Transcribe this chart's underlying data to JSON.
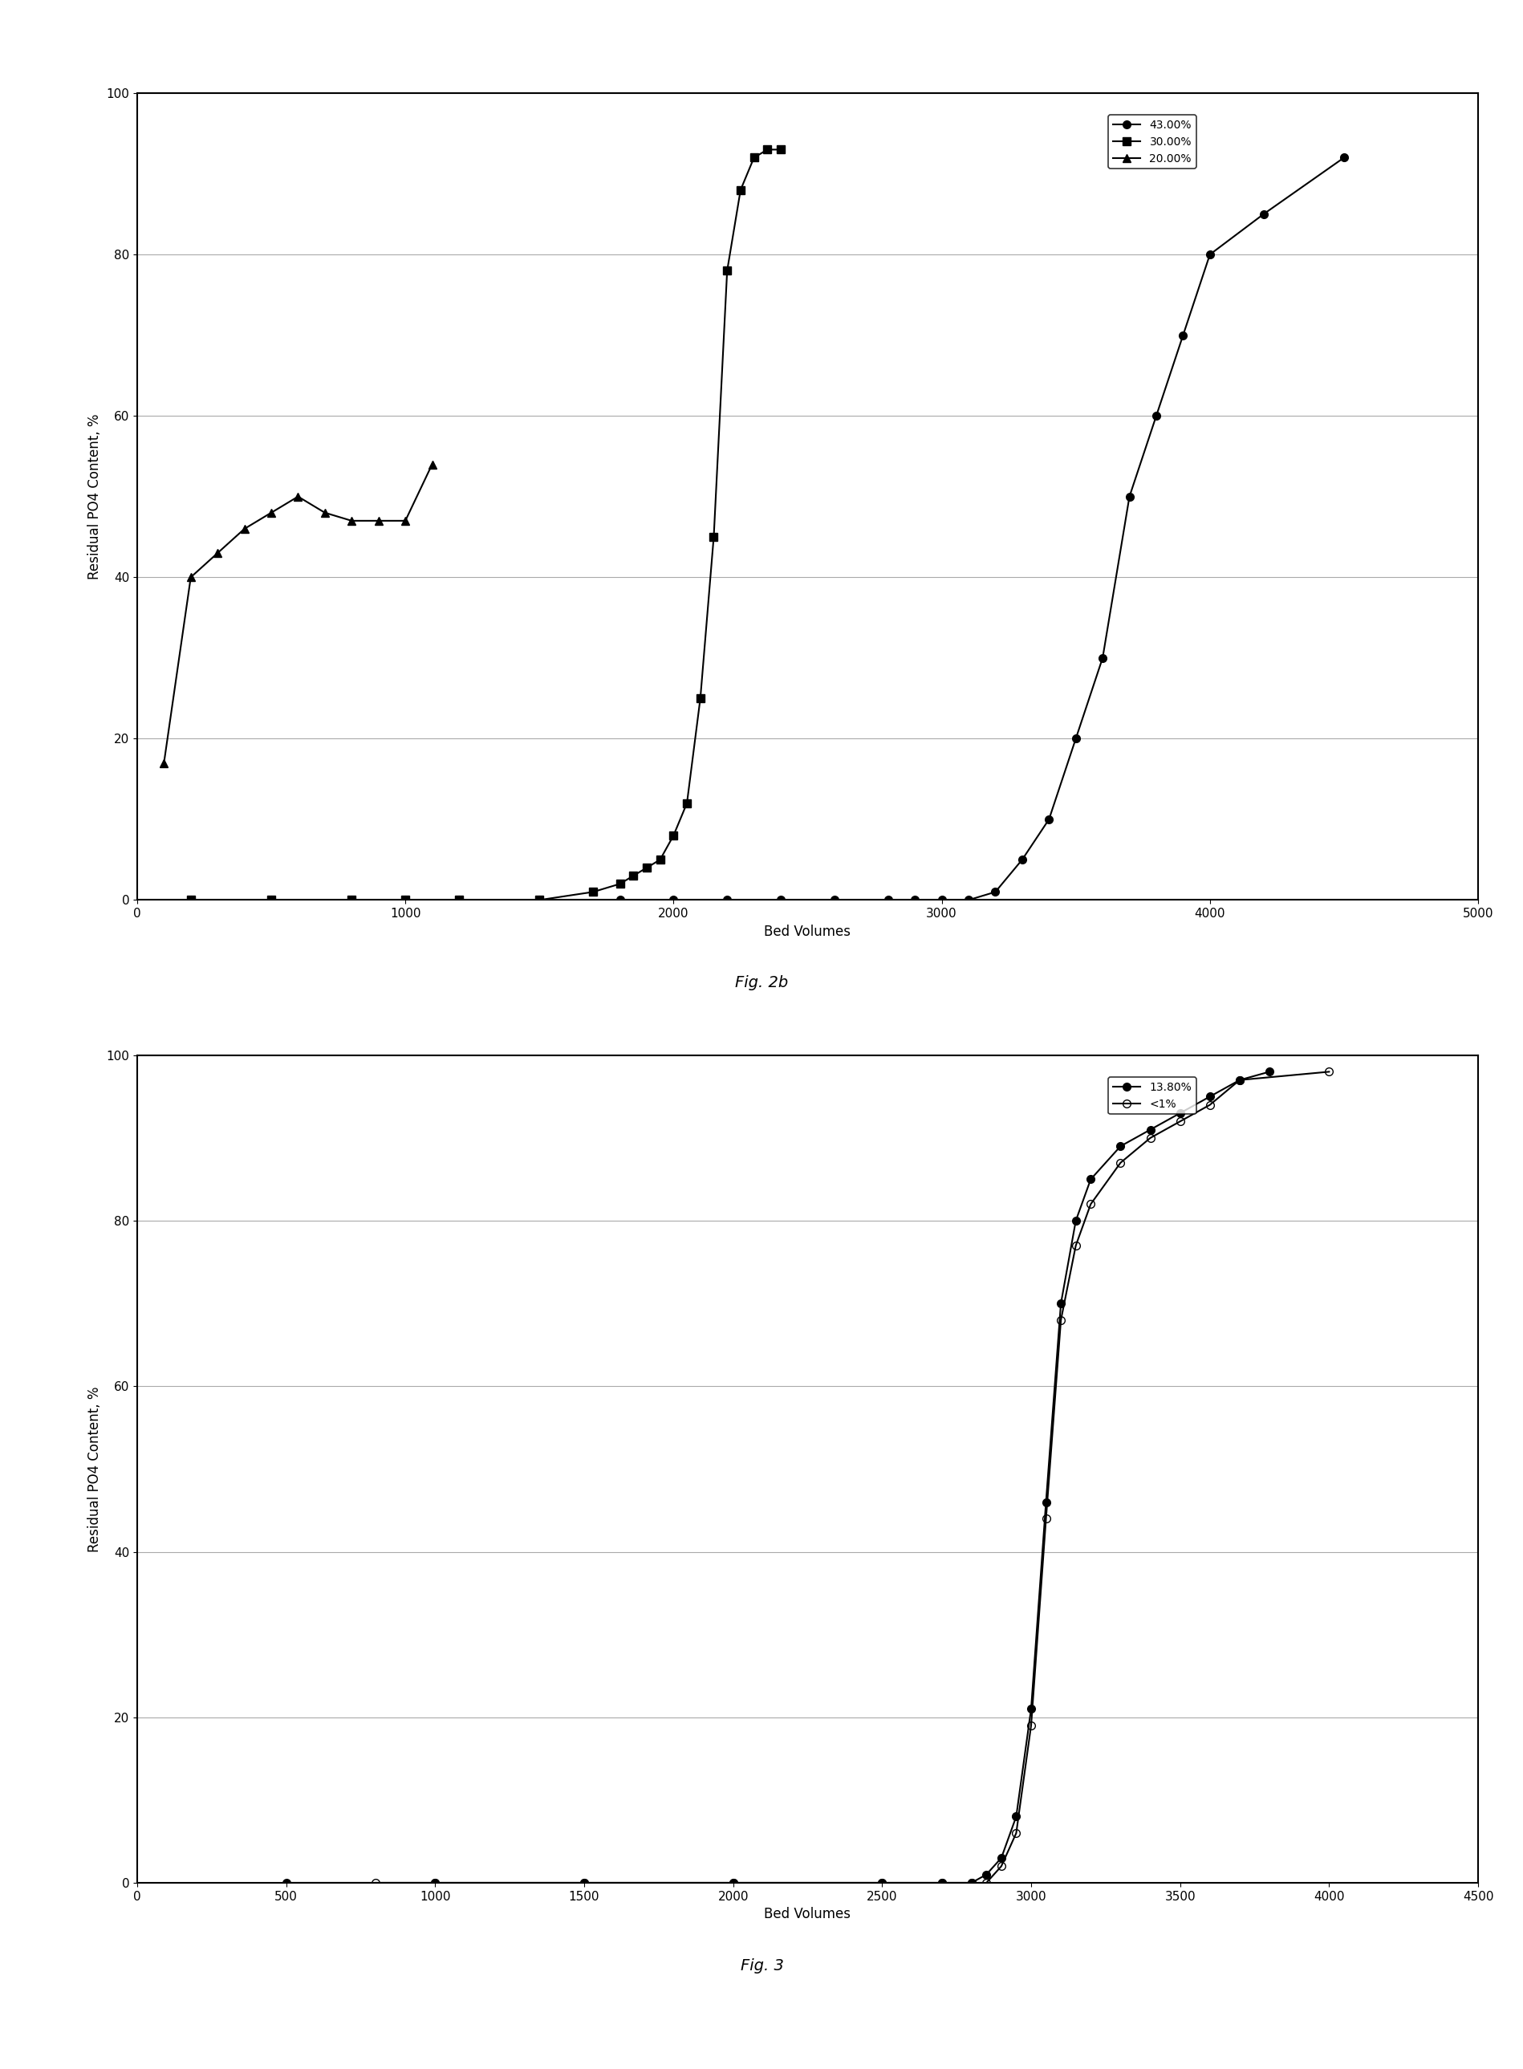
{
  "fig2b": {
    "xlabel": "Bed Volumes",
    "ylabel": "Residual PO4 Content, %",
    "xlim": [
      0,
      5000
    ],
    "ylim": [
      0,
      100
    ],
    "xticks": [
      0,
      1000,
      2000,
      3000,
      4000,
      5000
    ],
    "yticks": [
      0,
      20,
      40,
      60,
      80,
      100
    ],
    "series": [
      {
        "label": "43.00%",
        "marker": "o",
        "fillstyle": "full",
        "color": "#000000",
        "x": [
          200,
          500,
          800,
          1000,
          1200,
          1500,
          1800,
          2000,
          2200,
          2400,
          2600,
          2800,
          2900,
          3000,
          3100,
          3200,
          3300,
          3400,
          3500,
          3600,
          3700,
          3800,
          3900,
          4000,
          4200,
          4500
        ],
        "y": [
          0,
          0,
          0,
          0,
          0,
          0,
          0,
          0,
          0,
          0,
          0,
          0,
          0,
          0,
          0,
          1,
          5,
          10,
          20,
          30,
          50,
          60,
          70,
          80,
          85,
          92
        ]
      },
      {
        "label": "30.00%",
        "marker": "s",
        "fillstyle": "full",
        "color": "#000000",
        "x": [
          200,
          500,
          800,
          1000,
          1200,
          1500,
          1700,
          1800,
          1850,
          1900,
          1950,
          2000,
          2050,
          2100,
          2150,
          2200,
          2250,
          2300,
          2350,
          2400
        ],
        "y": [
          0,
          0,
          0,
          0,
          0,
          0,
          1,
          2,
          3,
          4,
          5,
          8,
          12,
          25,
          45,
          78,
          88,
          92,
          93,
          93
        ]
      },
      {
        "label": "20.00%",
        "marker": "^",
        "fillstyle": "full",
        "color": "#000000",
        "x": [
          100,
          200,
          300,
          400,
          500,
          600,
          700,
          800,
          900,
          1000,
          1100
        ],
        "y": [
          17,
          40,
          43,
          46,
          48,
          50,
          48,
          47,
          47,
          47,
          54
        ]
      }
    ]
  },
  "fig3": {
    "xlabel": "Bed Volumes",
    "ylabel": "Residual PO4 Content, %",
    "xlim": [
      0,
      4500
    ],
    "ylim": [
      0,
      100
    ],
    "xticks": [
      0,
      500,
      1000,
      1500,
      2000,
      2500,
      3000,
      3500,
      4000,
      4500
    ],
    "yticks": [
      0,
      20,
      40,
      60,
      80,
      100
    ],
    "series": [
      {
        "label": "13.80%",
        "marker": "o",
        "fillstyle": "full",
        "color": "#000000",
        "x": [
          500,
          1000,
          1500,
          2000,
          2500,
          2700,
          2800,
          2850,
          2900,
          2950,
          3000,
          3050,
          3100,
          3150,
          3200,
          3300,
          3400,
          3500,
          3600,
          3700,
          3800
        ],
        "y": [
          0,
          0,
          0,
          0,
          0,
          0,
          0,
          1,
          3,
          8,
          21,
          46,
          70,
          80,
          85,
          89,
          91,
          93,
          95,
          97,
          98
        ]
      },
      {
        "label": "<1%",
        "marker": "o",
        "fillstyle": "none",
        "color": "#000000",
        "x": [
          800,
          1000,
          1500,
          2000,
          2500,
          2700,
          2800,
          2850,
          2900,
          2950,
          3000,
          3050,
          3100,
          3150,
          3200,
          3300,
          3400,
          3500,
          3600,
          3700,
          4000
        ],
        "y": [
          0,
          0,
          0,
          0,
          0,
          0,
          0,
          0,
          2,
          6,
          19,
          44,
          68,
          77,
          82,
          87,
          90,
          92,
          94,
          97,
          98
        ]
      }
    ]
  },
  "background_color": "#ffffff",
  "plot_bg_color": "#ffffff",
  "line_color": "#000000",
  "fontsize_label": 12,
  "fontsize_tick": 11,
  "fontsize_legend": 10,
  "fontsize_caption": 14,
  "caption_fig2b": "Fig. 2b",
  "caption_fig3": "Fig. 3"
}
